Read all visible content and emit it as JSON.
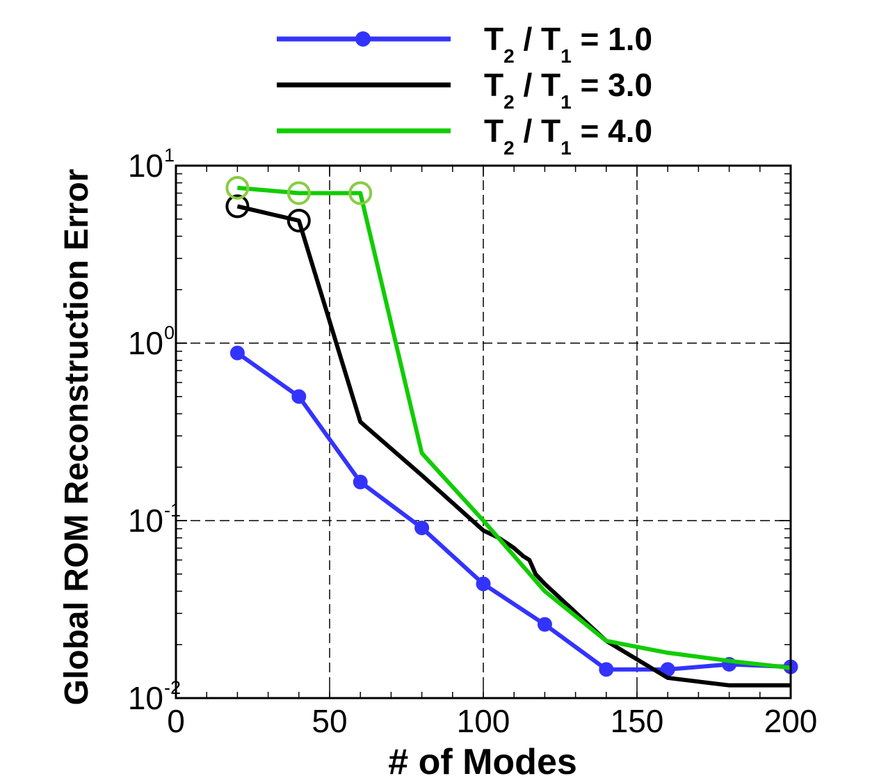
{
  "chart_data": {
    "type": "line",
    "title": "",
    "xlabel": "# of Modes",
    "ylabel": "Global ROM Reconstruction Error",
    "xlim": [
      0,
      200
    ],
    "ylim": [
      0.01,
      10
    ],
    "yscale": "log",
    "grid": true,
    "legend_position": "top",
    "x_ticks": [
      "0",
      "50",
      "100",
      "150",
      "200"
    ],
    "x_tick_values": [
      0,
      50,
      100,
      150,
      200
    ],
    "y_ticks": [
      {
        "base": "10",
        "exp": "1",
        "value": 10
      },
      {
        "base": "10",
        "exp": "0",
        "value": 1
      },
      {
        "base": "10",
        "exp": "-1",
        "value": 0.1
      },
      {
        "base": "10",
        "exp": "-2",
        "value": 0.01
      }
    ],
    "series": [
      {
        "name": "T2 / T1 = 1.0",
        "legend": {
          "T": "T",
          "sub_a": "2",
          "slash": " / ",
          "T_b": "T",
          "sub_b": "1",
          "value": " = 1.0"
        },
        "color": "#3333ff",
        "markers": true,
        "x": [
          20,
          40,
          60,
          80,
          100,
          120,
          140,
          160,
          180,
          200
        ],
        "y": [
          0.88,
          0.5,
          0.165,
          0.091,
          0.044,
          0.026,
          0.0145,
          0.0145,
          0.0155,
          0.015
        ]
      },
      {
        "name": "T2 / T1 = 3.0",
        "legend": {
          "T": "T",
          "sub_a": "2",
          "slash": " / ",
          "T_b": "T",
          "sub_b": "1",
          "value": " = 3.0"
        },
        "color": "#000000",
        "markers": false,
        "x": [
          20,
          40,
          60,
          80,
          100,
          105,
          108,
          110,
          113,
          115,
          117,
          120,
          140,
          160,
          180,
          200
        ],
        "y": [
          5.9,
          4.9,
          0.36,
          0.18,
          0.088,
          0.08,
          0.074,
          0.07,
          0.063,
          0.06,
          0.05,
          0.044,
          0.021,
          0.013,
          0.0118,
          0.0118
        ],
        "open_markers_x": [
          20,
          40
        ],
        "open_markers_y": [
          5.9,
          4.9
        ],
        "open_marker_color": "#000000"
      },
      {
        "name": "T2 / T1 = 4.0",
        "legend": {
          "T": "T",
          "sub_a": "2",
          "slash": " / ",
          "T_b": "T",
          "sub_b": "1",
          "value": " = 4.0"
        },
        "color": "#11cc00",
        "markers": false,
        "x": [
          20,
          40,
          60,
          80,
          100,
          120,
          140,
          160,
          180,
          200
        ],
        "y": [
          7.5,
          7.0,
          7.0,
          0.24,
          0.1,
          0.04,
          0.021,
          0.018,
          0.0162,
          0.0148
        ],
        "open_markers_x": [
          20,
          40,
          60
        ],
        "open_markers_y": [
          7.5,
          7.0,
          7.0
        ],
        "open_marker_color": "#88cc44"
      }
    ]
  }
}
